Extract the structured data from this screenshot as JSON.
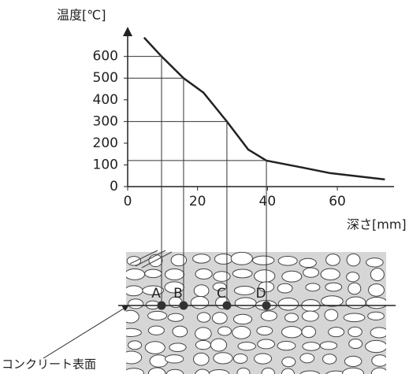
{
  "chart_data": {
    "type": "line",
    "y_label": "温度[℃]",
    "x_label": "深さ[mm]",
    "x": [
      4.7,
      9.7,
      16,
      21.7,
      28.4,
      34.5,
      39.7,
      49,
      58,
      73.6
    ],
    "series": [
      {
        "color": "#222222",
        "values": [
          687,
          600,
          500,
          433,
          300,
          171,
          120,
          91,
          62,
          33
        ]
      }
    ],
    "xlim": [
      0,
      76
    ],
    "ylim": [
      0,
      715
    ],
    "xticks": [
      0,
      20,
      40,
      60
    ],
    "yticks": [
      0,
      100,
      200,
      300,
      400,
      500,
      600
    ],
    "points": [
      {
        "label": "A",
        "x": 9.7,
        "y": 600
      },
      {
        "label": "B",
        "x": 16,
        "y": 500
      },
      {
        "label": "C",
        "x": 28.4,
        "y": 300
      },
      {
        "label": "D",
        "x": 39.7,
        "y": 120
      }
    ],
    "surface_label": "コンクリート表面"
  }
}
